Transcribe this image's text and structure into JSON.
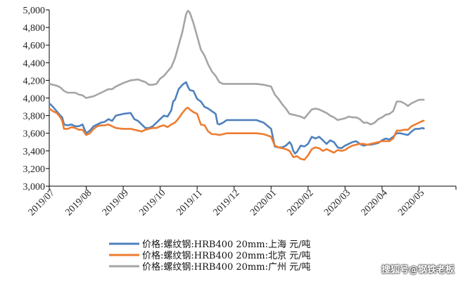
{
  "chart_data": {
    "type": "line",
    "ylim": [
      3000,
      5000
    ],
    "y_ticks": [
      "3,000",
      "3,200",
      "3,400",
      "3,600",
      "3,800",
      "4,000",
      "4,200",
      "4,400",
      "4,600",
      "4,800",
      "5,000"
    ],
    "x_ticks": [
      "2019/07",
      "2019/08",
      "2019/09",
      "2019/10",
      "2019/11",
      "2019/12",
      "2020/01",
      "2020/02",
      "2020/03",
      "2020/04",
      "2020/05"
    ],
    "legend_position": "bottom",
    "series": [
      {
        "name": "价格:螺纹钢:HRB400 20mm:上海 元/吨",
        "color": "#4f81bd",
        "points": [
          [
            0.0,
            3940
          ],
          [
            0.1,
            3900
          ],
          [
            0.2,
            3850
          ],
          [
            0.3,
            3800
          ],
          [
            0.35,
            3780
          ],
          [
            0.4,
            3700
          ],
          [
            0.5,
            3690
          ],
          [
            0.6,
            3700
          ],
          [
            0.7,
            3680
          ],
          [
            0.8,
            3680
          ],
          [
            0.9,
            3700
          ],
          [
            1.0,
            3600
          ],
          [
            1.1,
            3630
          ],
          [
            1.2,
            3680
          ],
          [
            1.3,
            3700
          ],
          [
            1.4,
            3720
          ],
          [
            1.5,
            3730
          ],
          [
            1.6,
            3760
          ],
          [
            1.7,
            3740
          ],
          [
            1.8,
            3800
          ],
          [
            2.0,
            3820
          ],
          [
            2.2,
            3830
          ],
          [
            2.3,
            3760
          ],
          [
            2.4,
            3740
          ],
          [
            2.5,
            3700
          ],
          [
            2.6,
            3660
          ],
          [
            2.7,
            3660
          ],
          [
            2.8,
            3680
          ],
          [
            2.9,
            3720
          ],
          [
            3.0,
            3760
          ],
          [
            3.1,
            3800
          ],
          [
            3.2,
            3790
          ],
          [
            3.3,
            3860
          ],
          [
            3.35,
            3960
          ],
          [
            3.4,
            3980
          ],
          [
            3.5,
            4100
          ],
          [
            3.6,
            4150
          ],
          [
            3.7,
            4180
          ],
          [
            3.75,
            4130
          ],
          [
            3.8,
            4090
          ],
          [
            3.9,
            4080
          ],
          [
            4.0,
            3990
          ],
          [
            4.1,
            3960
          ],
          [
            4.2,
            3900
          ],
          [
            4.3,
            3880
          ],
          [
            4.4,
            3850
          ],
          [
            4.5,
            3820
          ],
          [
            4.55,
            3710
          ],
          [
            4.6,
            3700
          ],
          [
            4.7,
            3720
          ],
          [
            4.8,
            3750
          ],
          [
            5.0,
            3750
          ],
          [
            5.2,
            3750
          ],
          [
            5.4,
            3750
          ],
          [
            5.6,
            3750
          ],
          [
            5.8,
            3720
          ],
          [
            6.0,
            3650
          ],
          [
            6.1,
            3450
          ],
          [
            6.2,
            3440
          ],
          [
            6.3,
            3440
          ],
          [
            6.4,
            3460
          ],
          [
            6.5,
            3500
          ],
          [
            6.55,
            3470
          ],
          [
            6.6,
            3400
          ],
          [
            6.65,
            3370
          ],
          [
            6.7,
            3390
          ],
          [
            6.8,
            3460
          ],
          [
            6.9,
            3450
          ],
          [
            7.0,
            3480
          ],
          [
            7.1,
            3560
          ],
          [
            7.2,
            3540
          ],
          [
            7.3,
            3560
          ],
          [
            7.4,
            3520
          ],
          [
            7.5,
            3480
          ],
          [
            7.6,
            3520
          ],
          [
            7.7,
            3500
          ],
          [
            7.8,
            3440
          ],
          [
            7.9,
            3430
          ],
          [
            8.0,
            3460
          ],
          [
            8.1,
            3480
          ],
          [
            8.2,
            3500
          ],
          [
            8.3,
            3510
          ],
          [
            8.4,
            3480
          ],
          [
            8.5,
            3460
          ],
          [
            8.6,
            3470
          ],
          [
            8.7,
            3470
          ],
          [
            8.8,
            3480
          ],
          [
            8.9,
            3490
          ],
          [
            9.0,
            3520
          ],
          [
            9.1,
            3540
          ],
          [
            9.2,
            3530
          ],
          [
            9.3,
            3560
          ],
          [
            9.4,
            3600
          ],
          [
            9.5,
            3600
          ],
          [
            9.6,
            3590
          ],
          [
            9.7,
            3580
          ],
          [
            9.8,
            3620
          ],
          [
            9.9,
            3650
          ],
          [
            10.0,
            3650
          ],
          [
            10.1,
            3660
          ],
          [
            10.15,
            3650
          ]
        ]
      },
      {
        "name": "价格:螺纹钢:HRB400 20mm:北京 元/吨",
        "color": "#ed7d31",
        "points": [
          [
            0.0,
            3880
          ],
          [
            0.1,
            3850
          ],
          [
            0.2,
            3830
          ],
          [
            0.3,
            3780
          ],
          [
            0.35,
            3740
          ],
          [
            0.4,
            3650
          ],
          [
            0.5,
            3650
          ],
          [
            0.6,
            3670
          ],
          [
            0.7,
            3660
          ],
          [
            0.8,
            3640
          ],
          [
            0.9,
            3640
          ],
          [
            1.0,
            3580
          ],
          [
            1.1,
            3600
          ],
          [
            1.2,
            3650
          ],
          [
            1.3,
            3680
          ],
          [
            1.4,
            3690
          ],
          [
            1.5,
            3690
          ],
          [
            1.6,
            3700
          ],
          [
            1.7,
            3680
          ],
          [
            1.8,
            3660
          ],
          [
            2.0,
            3650
          ],
          [
            2.2,
            3650
          ],
          [
            2.3,
            3640
          ],
          [
            2.4,
            3630
          ],
          [
            2.5,
            3620
          ],
          [
            2.6,
            3640
          ],
          [
            2.7,
            3650
          ],
          [
            2.8,
            3660
          ],
          [
            2.9,
            3660
          ],
          [
            3.0,
            3680
          ],
          [
            3.1,
            3690
          ],
          [
            3.2,
            3670
          ],
          [
            3.3,
            3700
          ],
          [
            3.4,
            3720
          ],
          [
            3.5,
            3770
          ],
          [
            3.6,
            3830
          ],
          [
            3.7,
            3880
          ],
          [
            3.75,
            3890
          ],
          [
            3.8,
            3870
          ],
          [
            3.9,
            3840
          ],
          [
            4.0,
            3820
          ],
          [
            4.1,
            3700
          ],
          [
            4.2,
            3690
          ],
          [
            4.3,
            3620
          ],
          [
            4.4,
            3590
          ],
          [
            4.5,
            3590
          ],
          [
            4.6,
            3580
          ],
          [
            4.7,
            3590
          ],
          [
            4.8,
            3600
          ],
          [
            5.0,
            3600
          ],
          [
            5.2,
            3600
          ],
          [
            5.4,
            3600
          ],
          [
            5.6,
            3600
          ],
          [
            5.8,
            3590
          ],
          [
            6.0,
            3560
          ],
          [
            6.1,
            3460
          ],
          [
            6.2,
            3440
          ],
          [
            6.3,
            3430
          ],
          [
            6.4,
            3420
          ],
          [
            6.5,
            3400
          ],
          [
            6.6,
            3330
          ],
          [
            6.7,
            3340
          ],
          [
            6.8,
            3310
          ],
          [
            6.9,
            3300
          ],
          [
            7.0,
            3350
          ],
          [
            7.1,
            3420
          ],
          [
            7.2,
            3440
          ],
          [
            7.3,
            3430
          ],
          [
            7.4,
            3400
          ],
          [
            7.5,
            3420
          ],
          [
            7.6,
            3400
          ],
          [
            7.7,
            3380
          ],
          [
            7.8,
            3410
          ],
          [
            7.9,
            3400
          ],
          [
            8.0,
            3410
          ],
          [
            8.1,
            3440
          ],
          [
            8.2,
            3460
          ],
          [
            8.3,
            3470
          ],
          [
            8.4,
            3480
          ],
          [
            8.5,
            3480
          ],
          [
            8.6,
            3470
          ],
          [
            8.7,
            3480
          ],
          [
            8.8,
            3490
          ],
          [
            8.9,
            3500
          ],
          [
            9.0,
            3510
          ],
          [
            9.1,
            3510
          ],
          [
            9.2,
            3510
          ],
          [
            9.3,
            3540
          ],
          [
            9.4,
            3630
          ],
          [
            9.5,
            3630
          ],
          [
            9.6,
            3640
          ],
          [
            9.7,
            3640
          ],
          [
            9.8,
            3680
          ],
          [
            9.9,
            3700
          ],
          [
            10.0,
            3720
          ],
          [
            10.1,
            3740
          ],
          [
            10.15,
            3740
          ]
        ]
      },
      {
        "name": "价格:螺纹钢:HRB400 20mm:广州 元/吨",
        "color": "#a5a5a5",
        "points": [
          [
            0.0,
            4160
          ],
          [
            0.1,
            4150
          ],
          [
            0.2,
            4140
          ],
          [
            0.3,
            4120
          ],
          [
            0.4,
            4080
          ],
          [
            0.5,
            4060
          ],
          [
            0.6,
            4060
          ],
          [
            0.7,
            4060
          ],
          [
            0.8,
            4040
          ],
          [
            0.9,
            4030
          ],
          [
            1.0,
            4000
          ],
          [
            1.1,
            4010
          ],
          [
            1.2,
            4020
          ],
          [
            1.3,
            4040
          ],
          [
            1.4,
            4060
          ],
          [
            1.5,
            4080
          ],
          [
            1.6,
            4100
          ],
          [
            1.7,
            4100
          ],
          [
            1.8,
            4130
          ],
          [
            2.0,
            4170
          ],
          [
            2.2,
            4200
          ],
          [
            2.4,
            4210
          ],
          [
            2.6,
            4180
          ],
          [
            2.7,
            4150
          ],
          [
            2.8,
            4150
          ],
          [
            2.9,
            4160
          ],
          [
            3.0,
            4220
          ],
          [
            3.1,
            4250
          ],
          [
            3.2,
            4300
          ],
          [
            3.3,
            4350
          ],
          [
            3.4,
            4450
          ],
          [
            3.5,
            4600
          ],
          [
            3.6,
            4750
          ],
          [
            3.7,
            4950
          ],
          [
            3.75,
            4990
          ],
          [
            3.8,
            4970
          ],
          [
            3.9,
            4850
          ],
          [
            4.0,
            4700
          ],
          [
            4.1,
            4550
          ],
          [
            4.2,
            4480
          ],
          [
            4.3,
            4380
          ],
          [
            4.4,
            4300
          ],
          [
            4.5,
            4250
          ],
          [
            4.6,
            4180
          ],
          [
            4.7,
            4160
          ],
          [
            4.8,
            4160
          ],
          [
            5.0,
            4160
          ],
          [
            5.2,
            4160
          ],
          [
            5.4,
            4160
          ],
          [
            5.6,
            4160
          ],
          [
            5.8,
            4150
          ],
          [
            6.0,
            4130
          ],
          [
            6.1,
            4040
          ],
          [
            6.2,
            3990
          ],
          [
            6.3,
            3930
          ],
          [
            6.4,
            3880
          ],
          [
            6.5,
            3820
          ],
          [
            6.6,
            3810
          ],
          [
            6.7,
            3800
          ],
          [
            6.8,
            3790
          ],
          [
            6.9,
            3770
          ],
          [
            7.0,
            3820
          ],
          [
            7.1,
            3870
          ],
          [
            7.2,
            3880
          ],
          [
            7.3,
            3870
          ],
          [
            7.4,
            3850
          ],
          [
            7.5,
            3830
          ],
          [
            7.6,
            3800
          ],
          [
            7.7,
            3780
          ],
          [
            7.8,
            3750
          ],
          [
            7.9,
            3760
          ],
          [
            8.0,
            3770
          ],
          [
            8.1,
            3790
          ],
          [
            8.2,
            3780
          ],
          [
            8.3,
            3780
          ],
          [
            8.4,
            3760
          ],
          [
            8.5,
            3720
          ],
          [
            8.6,
            3720
          ],
          [
            8.7,
            3700
          ],
          [
            8.8,
            3720
          ],
          [
            8.9,
            3760
          ],
          [
            9.0,
            3780
          ],
          [
            9.1,
            3810
          ],
          [
            9.2,
            3820
          ],
          [
            9.3,
            3850
          ],
          [
            9.4,
            3960
          ],
          [
            9.5,
            3960
          ],
          [
            9.6,
            3940
          ],
          [
            9.7,
            3910
          ],
          [
            9.8,
            3940
          ],
          [
            9.9,
            3960
          ],
          [
            10.0,
            3980
          ],
          [
            10.1,
            3980
          ],
          [
            10.15,
            3980
          ]
        ]
      }
    ]
  },
  "watermark": "搜狐号@钢铁老板"
}
